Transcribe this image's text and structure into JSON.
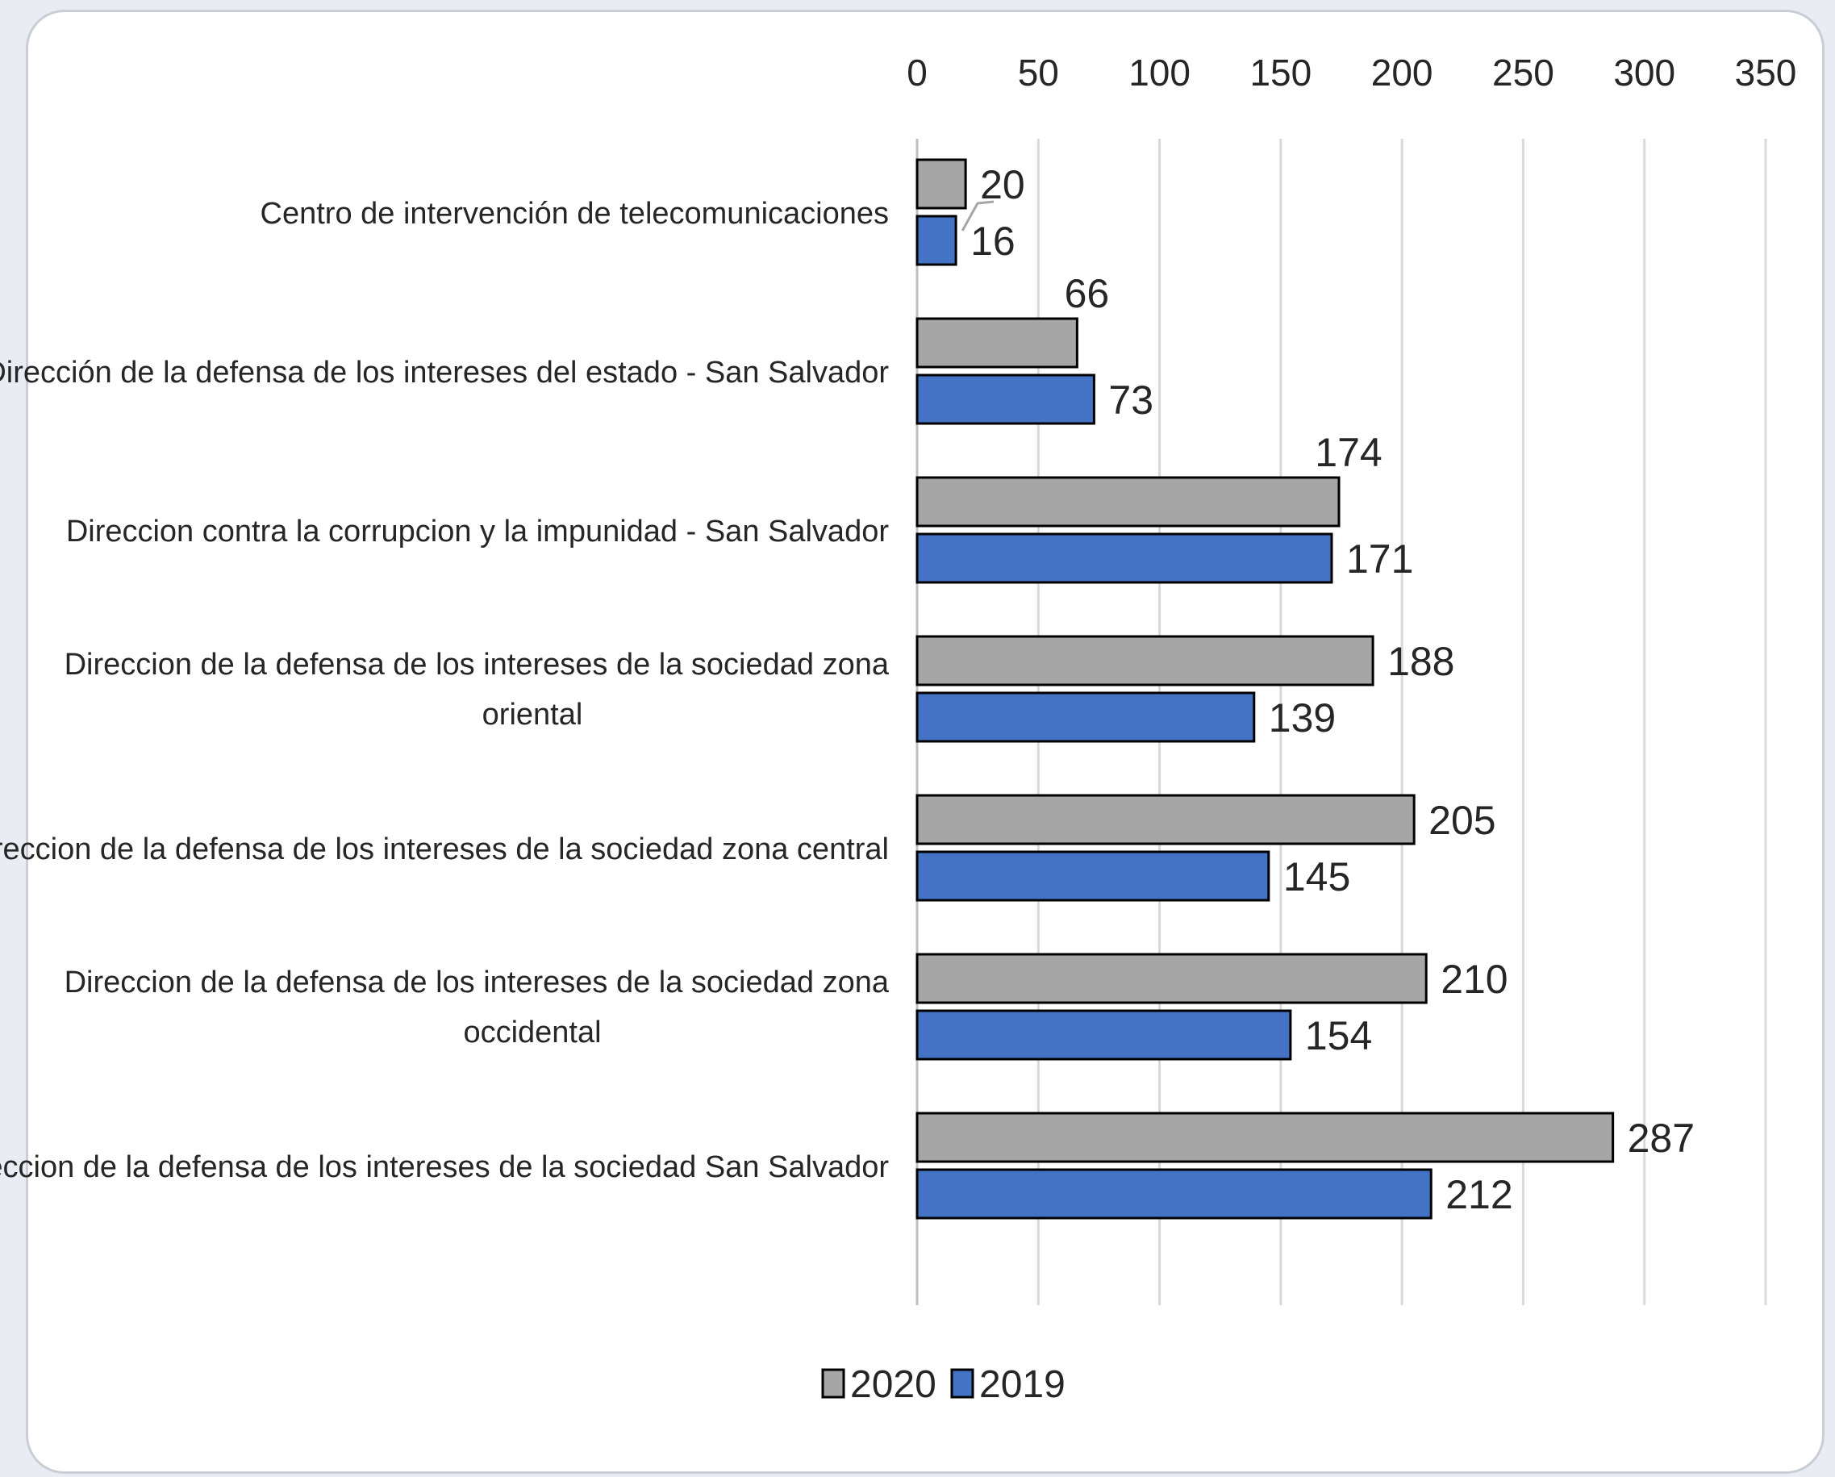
{
  "chart_data": {
    "type": "bar",
    "orientation": "horizontal",
    "categories": [
      "Centro de intervención de telecomunicaciones",
      "Dirección de la defensa de los intereses del estado - San Salvador",
      "Direccion contra la corrupcion y la impunidad - San Salvador",
      "Direccion de la defensa de los intereses de la sociedad zona oriental",
      "Direccion de la defensa de los intereses de la sociedad zona central",
      "Direccion de la defensa de los intereses de la sociedad zona occidental",
      "Direccion de la defensa de los intereses de la sociedad San Salvador"
    ],
    "series": [
      {
        "name": "2020",
        "color": "#a6a6a6",
        "values": [
          20,
          66,
          174,
          188,
          205,
          210,
          287
        ]
      },
      {
        "name": "2019",
        "color": "#4472c4",
        "values": [
          16,
          73,
          171,
          139,
          145,
          154,
          212
        ]
      }
    ],
    "xlim": [
      0,
      350
    ],
    "xticks": [
      0,
      50,
      100,
      150,
      200,
      250,
      300,
      350
    ],
    "x_axis_position": "top",
    "grid": true,
    "legend_position": "bottom",
    "title": "",
    "xlabel": "",
    "ylabel": ""
  }
}
